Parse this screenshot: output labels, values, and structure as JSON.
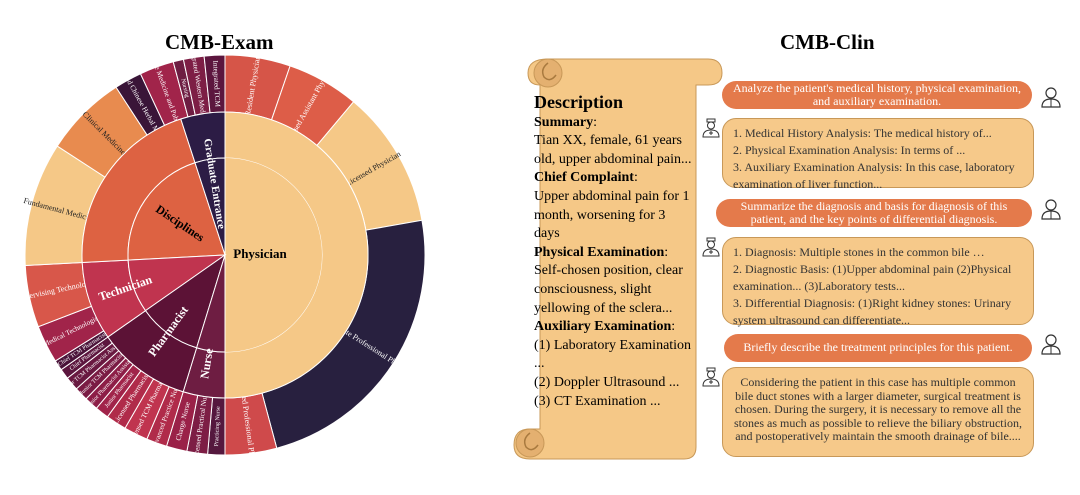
{
  "left_title": "CMB-Exam",
  "right_title": "CMB-Clin",
  "chart_data": {
    "type": "sunburst",
    "title": "CMB-Exam",
    "center_label": "Disciplines",
    "inner": [
      {
        "name": "Physician",
        "angle": 180,
        "color": "#f5c887"
      },
      {
        "name": "Nurse",
        "angle": 17,
        "color": "#6e1d42"
      },
      {
        "name": "Pharmacist",
        "angle": 38,
        "color": "#5c1236"
      },
      {
        "name": "Technician",
        "angle": 32,
        "color": "#c0344f"
      },
      {
        "name": "Disciplines",
        "angle": 75,
        "color": "#dd6242"
      },
      {
        "name": "Graduate Entrance",
        "angle": 18,
        "color": "#2c1c45"
      }
    ],
    "outer": [
      {
        "name": "Resident Physician",
        "angle": 19,
        "color": "#d65548"
      },
      {
        "name": "Licensed Assistant Physician",
        "angle": 21,
        "color": "#dd5d48"
      },
      {
        "name": "Licensed Physician",
        "angle": 40,
        "color": "#f5c887"
      },
      {
        "name": "Associate Professional Physician",
        "angle": 85,
        "color": "#28203f"
      },
      {
        "name": "Advanced Professional Physician",
        "angle": 15,
        "color": "#cf4a4b"
      },
      {
        "name": "Practicing Nurse",
        "angle": 5,
        "color": "#55183e"
      },
      {
        "name": "Licensed Practical Nurse",
        "angle": 6,
        "color": "#7d1e45"
      },
      {
        "name": "Charge Nurse",
        "angle": 6,
        "color": "#9a2148"
      },
      {
        "name": "Advanced Practice Nurse",
        "angle": 6,
        "color": "#b02b4a"
      },
      {
        "name": "Licensed TCM Pharmacist",
        "angle": 7,
        "color": "#c0344f"
      },
      {
        "name": "Licensed Pharmacist",
        "angle": 6,
        "color": "#b02b4a"
      },
      {
        "name": "Junior Pharmacist",
        "angle": 4,
        "color": "#a1244a"
      },
      {
        "name": "Junior Pharmacist Assistant",
        "angle": 4,
        "color": "#8d1e47"
      },
      {
        "name": "Junior TCM Pharmacist",
        "angle": 4,
        "color": "#7a1b44"
      },
      {
        "name": "Junior TCM Pharmacist Assistant",
        "angle": 4,
        "color": "#691941"
      },
      {
        "name": "Chief Pharmacist",
        "angle": 3,
        "color": "#5c163e"
      },
      {
        "name": "Chief TCM Pharmacist",
        "angle": 3,
        "color": "#4a1339"
      },
      {
        "name": "Medical Technologist",
        "angle": 11,
        "color": "#a1244a"
      },
      {
        "name": "Supervising Technologist",
        "angle": 18,
        "color": "#d8574a"
      },
      {
        "name": "Fundamental Medicine",
        "angle": 36,
        "color": "#f5c887"
      },
      {
        "name": "Clinical Medicine",
        "angle": 24,
        "color": "#e88b4f"
      },
      {
        "name": "TCM and Chinese Herbal Medicine",
        "angle": 8,
        "color": "#3a1538"
      },
      {
        "name": "Preventive Medicine and Public Health",
        "angle": 10,
        "color": "#a1244a"
      },
      {
        "name": "Nursing",
        "angle": 3,
        "color": "#6e1d42"
      },
      {
        "name": "Integrated Western Medicine",
        "angle": 6,
        "color": "#7d1e45"
      },
      {
        "name": "Integrated TCM",
        "angle": 6,
        "color": "#5c163e"
      }
    ]
  },
  "description": {
    "heading": "Description",
    "blocks": [
      {
        "label": "Summary",
        "text": "Tian XX, female, 61 years old, upper abdominal pain..."
      },
      {
        "label": "Chief Complaint",
        "text": "Upper abdominal pain for 1 month, worsening for 3 days"
      },
      {
        "label": "Physical Examination",
        "text": "Self-chosen position, clear consciousness, slight yellowing of the sclera..."
      },
      {
        "label": "Auxiliary Examination",
        "text": "(1) Laboratory Examination ...\n(2) Doppler Ultrasound ...\n(3) CT Examination ..."
      }
    ]
  },
  "dialogue": [
    {
      "role": "question",
      "text": "Analyze the patient's medical history, physical examination, and auxiliary examination."
    },
    {
      "role": "answer",
      "lines": [
        "1. Medical History Analysis: The medical history of...",
        "2. Physical Examination Analysis: In terms of ...",
        "3. Auxiliary Examination Analysis: In this case, laboratory examination of liver function..."
      ]
    },
    {
      "role": "question",
      "text": "Summarize the diagnosis and basis for diagnosis of this patient, and the key points of differential diagnosis."
    },
    {
      "role": "answer",
      "lines": [
        "1. Diagnosis: Multiple stones in the common bile …",
        "2. Diagnostic Basis: (1)Upper abdominal pain (2)Physical examination... (3)Laboratory tests...",
        "3. Differential Diagnosis: (1)Right kidney stones: Urinary system ultrasound can differentiate..."
      ]
    },
    {
      "role": "question",
      "text": "Briefly describe the treatment principles for this patient."
    },
    {
      "role": "answer",
      "lines": [
        "Considering the patient in this case has multiple common bile duct stones with a larger diameter, surgical treatment is chosen. During the surgery, it is necessary to remove all the stones as much as possible to relieve the biliary obstruction, and postoperatively maintain the smooth drainage of bile...."
      ]
    }
  ],
  "icons": {
    "doctor": "doctor-icon",
    "patient": "patient-icon",
    "scroll": "scroll-icon"
  },
  "colors": {
    "question_bg": "#e47a4b",
    "answer_bg": "#f6c98a",
    "scroll_bg": "#f5c887"
  }
}
